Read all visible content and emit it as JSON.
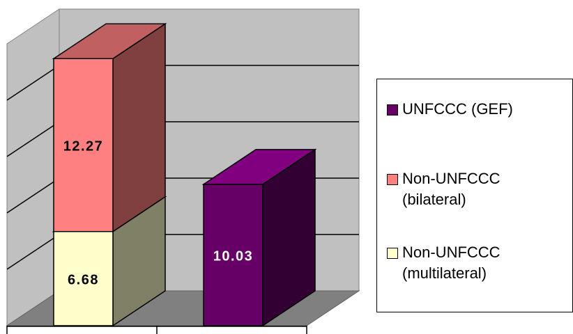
{
  "chart_data": {
    "type": "bar",
    "stacked": true,
    "style": "3d",
    "categories": [
      "",
      ""
    ],
    "series": [
      {
        "name": "UNFCCC (GEF)",
        "color": "#660066",
        "values": [
          null,
          10.03
        ]
      },
      {
        "name": "Non-UNFCCC\n(bilateral)",
        "color": "#ff8080",
        "values": [
          12.27,
          null
        ]
      },
      {
        "name": "Non-UNFCCC\n(multilateral)",
        "color": "#ffffcc",
        "values": [
          6.68,
          null
        ]
      }
    ],
    "data_labels": [
      "6.68",
      "12.27",
      "10.03"
    ],
    "ylim": [
      0,
      20
    ],
    "grid": true,
    "legend_position": "right"
  }
}
